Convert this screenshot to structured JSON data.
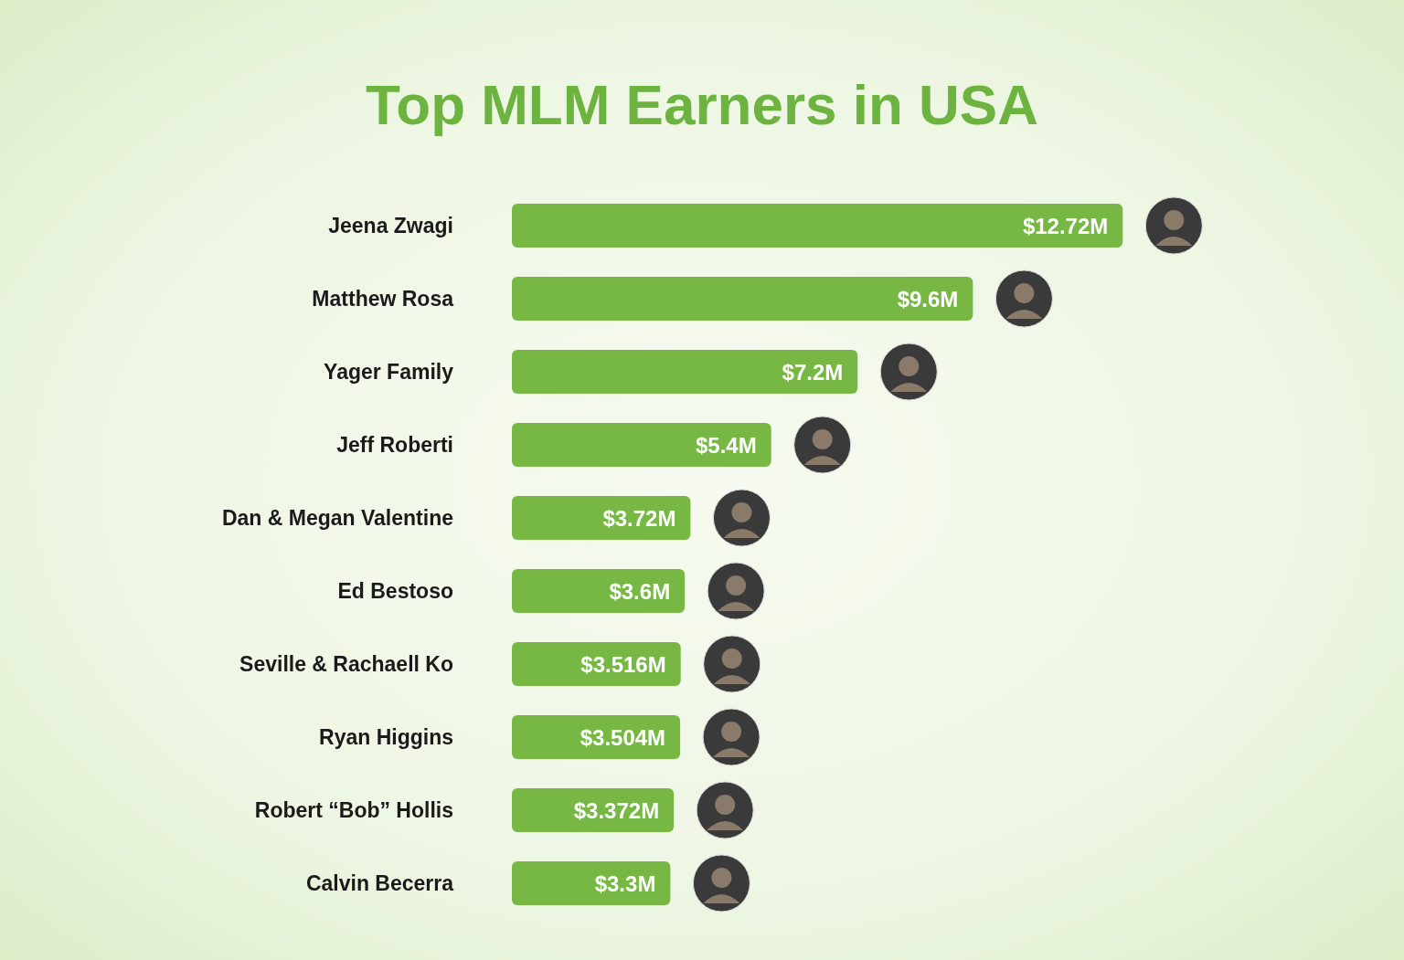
{
  "chart_data": {
    "type": "bar",
    "title": "Top MLM Earners in USA",
    "orientation": "horizontal",
    "categories": [
      "Jeena Zwagi",
      "Matthew Rosa",
      "Yager Family",
      "Jeff Roberti",
      "Dan & Megan Valentine",
      "Ed Bestoso",
      "Seville & Rachaell Ko",
      "Ryan Higgins",
      "Robert “Bob” Hollis",
      "Calvin Becerra"
    ],
    "values": [
      12.72,
      9.6,
      7.2,
      5.4,
      3.72,
      3.6,
      3.516,
      3.504,
      3.372,
      3.3
    ],
    "value_labels": [
      "$12.72M",
      "$9.6M",
      "$7.2M",
      "$5.4M",
      "$3.72M",
      "$3.6M",
      "$3.516M",
      "$3.504M",
      "$3.372M",
      "$3.3M"
    ],
    "color": "#76b843",
    "xlim": [
      0,
      13
    ],
    "data_labels": true,
    "tick_labels": "y",
    "grid": false
  }
}
